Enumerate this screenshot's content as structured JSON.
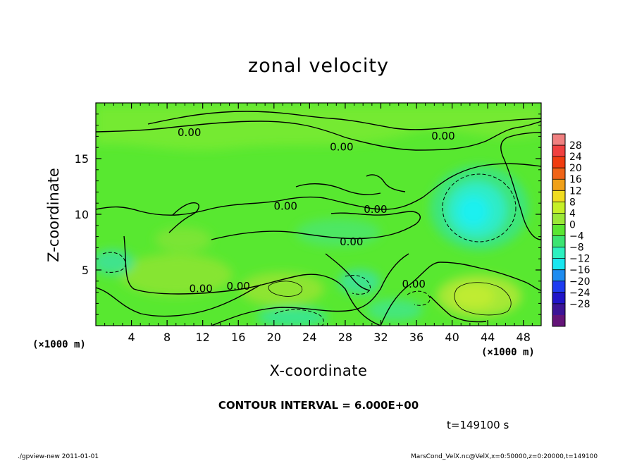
{
  "title": "zonal velocity",
  "xlabel": "X-coordinate",
  "ylabel": "Z-coordinate",
  "x_unit_left": "(×1000 m)",
  "x_unit_right": "(×1000 m)",
  "contour_interval": "CONTOUR INTERVAL = 6.000E+00",
  "time": "t=149100 s",
  "footer_left": "./gpview-new  2011-01-01",
  "footer_right": "MarsCond_VelX.nc@VelX,x=0:50000,z=0:20000,t=149100",
  "colors": {
    "background_field": "#58e830",
    "plus4": "#a2e838",
    "minus4": "#37e46e",
    "minus8": "#31f0c6",
    "minus12": "#1ef0f0"
  },
  "chart_data": {
    "type": "heatmap",
    "title": "zonal velocity",
    "xlabel": "X-coordinate",
    "ylabel": "Z-coordinate",
    "xlim": [
      0,
      50
    ],
    "ylim": [
      0,
      20
    ],
    "x_ticks": [
      4,
      8,
      12,
      16,
      20,
      24,
      28,
      32,
      36,
      40,
      44,
      48
    ],
    "y_ticks": [
      5,
      10,
      15
    ],
    "contour_labels": [
      {
        "text": "0.00",
        "x": 10.5,
        "y": 17.4
      },
      {
        "text": "0.00",
        "x": 27.6,
        "y": 16.1
      },
      {
        "text": "0.00",
        "x": 39.0,
        "y": 17.1
      },
      {
        "text": "0.00",
        "x": 21.3,
        "y": 10.8
      },
      {
        "text": "0.00",
        "x": 31.4,
        "y": 10.5
      },
      {
        "text": "0.00",
        "x": 28.7,
        "y": 7.6
      },
      {
        "text": "0.00",
        "x": 11.8,
        "y": 3.4
      },
      {
        "text": "0.00",
        "x": 16.0,
        "y": 3.6
      },
      {
        "text": "0.00",
        "x": 35.7,
        "y": 3.8
      }
    ],
    "colorbar": {
      "labels": [
        "28",
        "24",
        "20",
        "16",
        "12",
        "8",
        "4",
        "0",
        "−4",
        "−8",
        "−12",
        "−16",
        "−20",
        "−24",
        "−28"
      ],
      "colors": [
        "#f08080",
        "#f04040",
        "#f03c10",
        "#f06418",
        "#f0a018",
        "#f0dc20",
        "#c6f028",
        "#9be838",
        "#5ae632",
        "#3ce472",
        "#2cf0c0",
        "#19e6f0",
        "#1e8cf0",
        "#1e3cf0",
        "#2014c8",
        "#3c1496",
        "#641478"
      ]
    }
  }
}
